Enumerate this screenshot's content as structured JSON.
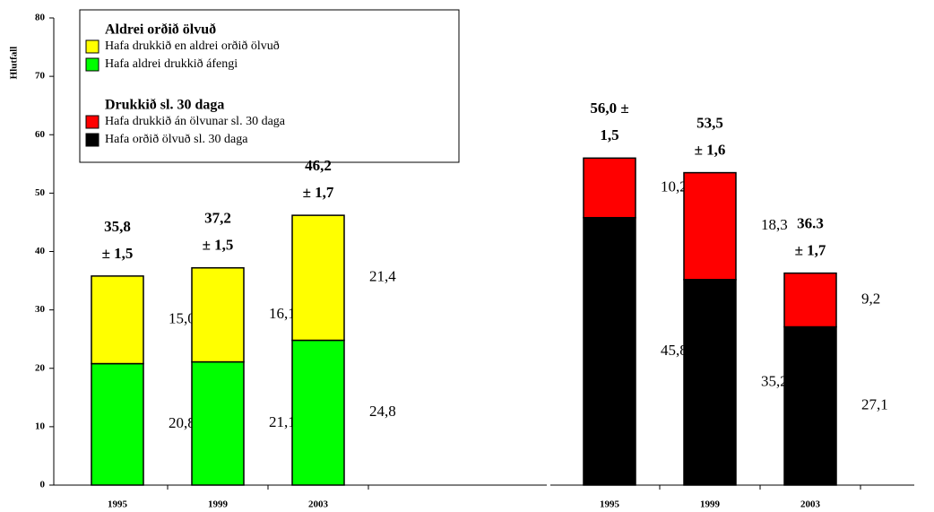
{
  "chart_data": [
    {
      "type": "stacked_bar",
      "y_label": "Hlutfall",
      "categories": [
        "1995",
        "1999",
        "2003"
      ],
      "ylim": [
        0,
        80
      ],
      "yticks": [
        0,
        10,
        20,
        30,
        40,
        50,
        60,
        70,
        80
      ],
      "legend_title": "Aldrei orðið ölvuð",
      "series": [
        {
          "name": "Hafa aldrei drukkið áfengi",
          "color": "#00ff00",
          "values": [
            20.8,
            21.1,
            24.8
          ],
          "value_labels": [
            "20,8",
            "21,1",
            "24,8"
          ]
        },
        {
          "name": "Hafa drukkið en aldrei orðið ölvuð",
          "color": "#ffff00",
          "values": [
            15.0,
            16.1,
            21.4
          ],
          "value_labels": [
            "15,0",
            "16,1",
            "21,4"
          ]
        }
      ],
      "annotations": [
        [
          "35,8",
          "± 1,5"
        ],
        [
          "37,2",
          "± 1,5"
        ],
        [
          "46,2",
          "± 1,7"
        ]
      ]
    },
    {
      "type": "stacked_bar",
      "categories": [
        "1995",
        "1999",
        "2003"
      ],
      "ylim": [
        0,
        80
      ],
      "legend_title": "Drukkið sl. 30 daga",
      "series": [
        {
          "name": "Hafa orðið ölvuð sl. 30 daga",
          "color": "#000000",
          "values": [
            45.8,
            35.2,
            27.1
          ],
          "value_labels": [
            "45,8",
            "35,2",
            "27,1"
          ]
        },
        {
          "name": "Hafa drukkið án ölvunar sl. 30 daga",
          "color": "#ff0000",
          "values": [
            10.2,
            18.3,
            9.2
          ],
          "value_labels": [
            "10,2",
            "18,3",
            "9,2"
          ]
        }
      ],
      "annotations": [
        [
          "56,0 ±",
          "1,5"
        ],
        [
          "53,5",
          "± 1,6"
        ],
        [
          "36.3",
          "± 1,7"
        ]
      ]
    }
  ]
}
